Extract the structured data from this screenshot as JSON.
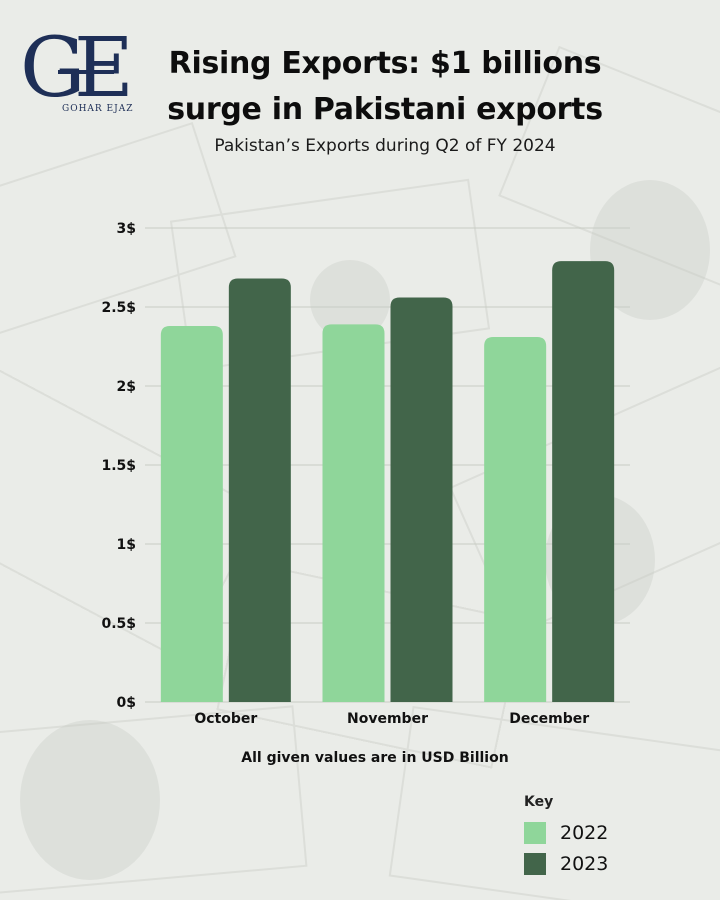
{
  "logo": {
    "monogram": "GE",
    "name": "GOHAR EJAZ"
  },
  "header": {
    "title_line1": "Rising Exports: $1 billions",
    "title_line2": "surge in Pakistani exports",
    "subtitle": "Pakistan’s Exports during Q2 of FY 2024"
  },
  "colors": {
    "series_2022": "#8fd69a",
    "series_2023": "#42654a",
    "logo_blue": "#1e2f57"
  },
  "chart_data": {
    "type": "bar",
    "categories": [
      "October",
      "November",
      "December"
    ],
    "series": [
      {
        "name": "2022",
        "values": [
          2.38,
          2.39,
          2.31
        ]
      },
      {
        "name": "2023",
        "values": [
          2.68,
          2.56,
          2.79
        ]
      }
    ],
    "ylim": [
      0,
      3
    ],
    "yticks": [
      {
        "value": 0,
        "label": "0$"
      },
      {
        "value": 0.5,
        "label": "0.5$"
      },
      {
        "value": 1,
        "label": "1$"
      },
      {
        "value": 1.5,
        "label": "1.5$"
      },
      {
        "value": 2,
        "label": "2$"
      },
      {
        "value": 2.5,
        "label": "2.5$"
      },
      {
        "value": 3,
        "label": "3$"
      }
    ],
    "grid": true,
    "note": "All given values are in USD Billion",
    "legend": {
      "title": "Key",
      "placement": "bottom-right"
    }
  }
}
